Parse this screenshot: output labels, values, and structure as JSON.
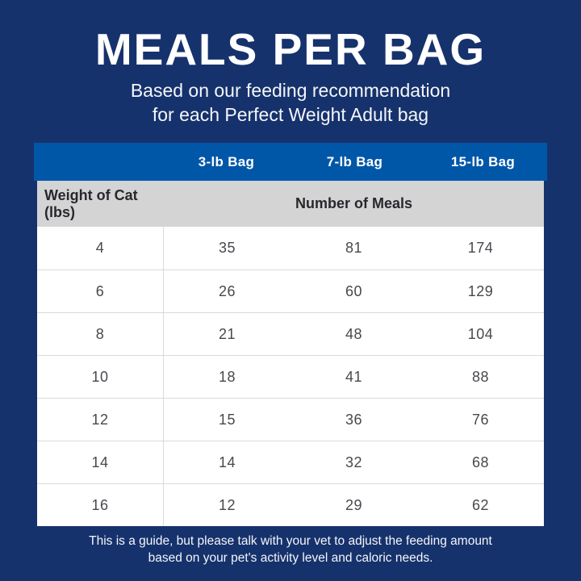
{
  "page": {
    "title": "MEALS PER BAG",
    "subtitle_line1": "Based on our feeding recommendation",
    "subtitle_line2": "for each Perfect Weight Adult bag",
    "footer_line1": "This is a guide, but please talk with your vet to adjust the feeding amount",
    "footer_line2": "based on your pet's activity level and caloric needs."
  },
  "colors": {
    "background_navy": "#16326C",
    "header_blue": "#0057A8",
    "subheader_gray": "#D4D4D4",
    "row_white": "#FFFFFF",
    "row_border": "#DADADA",
    "body_text": "#46494E",
    "subheader_text": "#26282C",
    "header_text": "#FFFFFF"
  },
  "chart_data": {
    "type": "table",
    "title": "MEALS PER BAG",
    "subtitle": "Based on our feeding recommendation for each Perfect Weight Adult bag",
    "columns": [
      "Weight of Cat (lbs)",
      "3-lb Bag",
      "7-lb Bag",
      "15-lb Bag"
    ],
    "group_header": "Number of Meals",
    "rows": [
      [
        "4",
        "35",
        "81",
        "174"
      ],
      [
        "6",
        "26",
        "60",
        "129"
      ],
      [
        "8",
        "21",
        "48",
        "104"
      ],
      [
        "10",
        "18",
        "41",
        "88"
      ],
      [
        "12",
        "15",
        "36",
        "76"
      ],
      [
        "14",
        "14",
        "32",
        "68"
      ],
      [
        "16",
        "12",
        "29",
        "62"
      ]
    ],
    "footnote": "This is a guide, but please talk with your vet to adjust the feeding amount based on your pet's activity level and caloric needs."
  }
}
